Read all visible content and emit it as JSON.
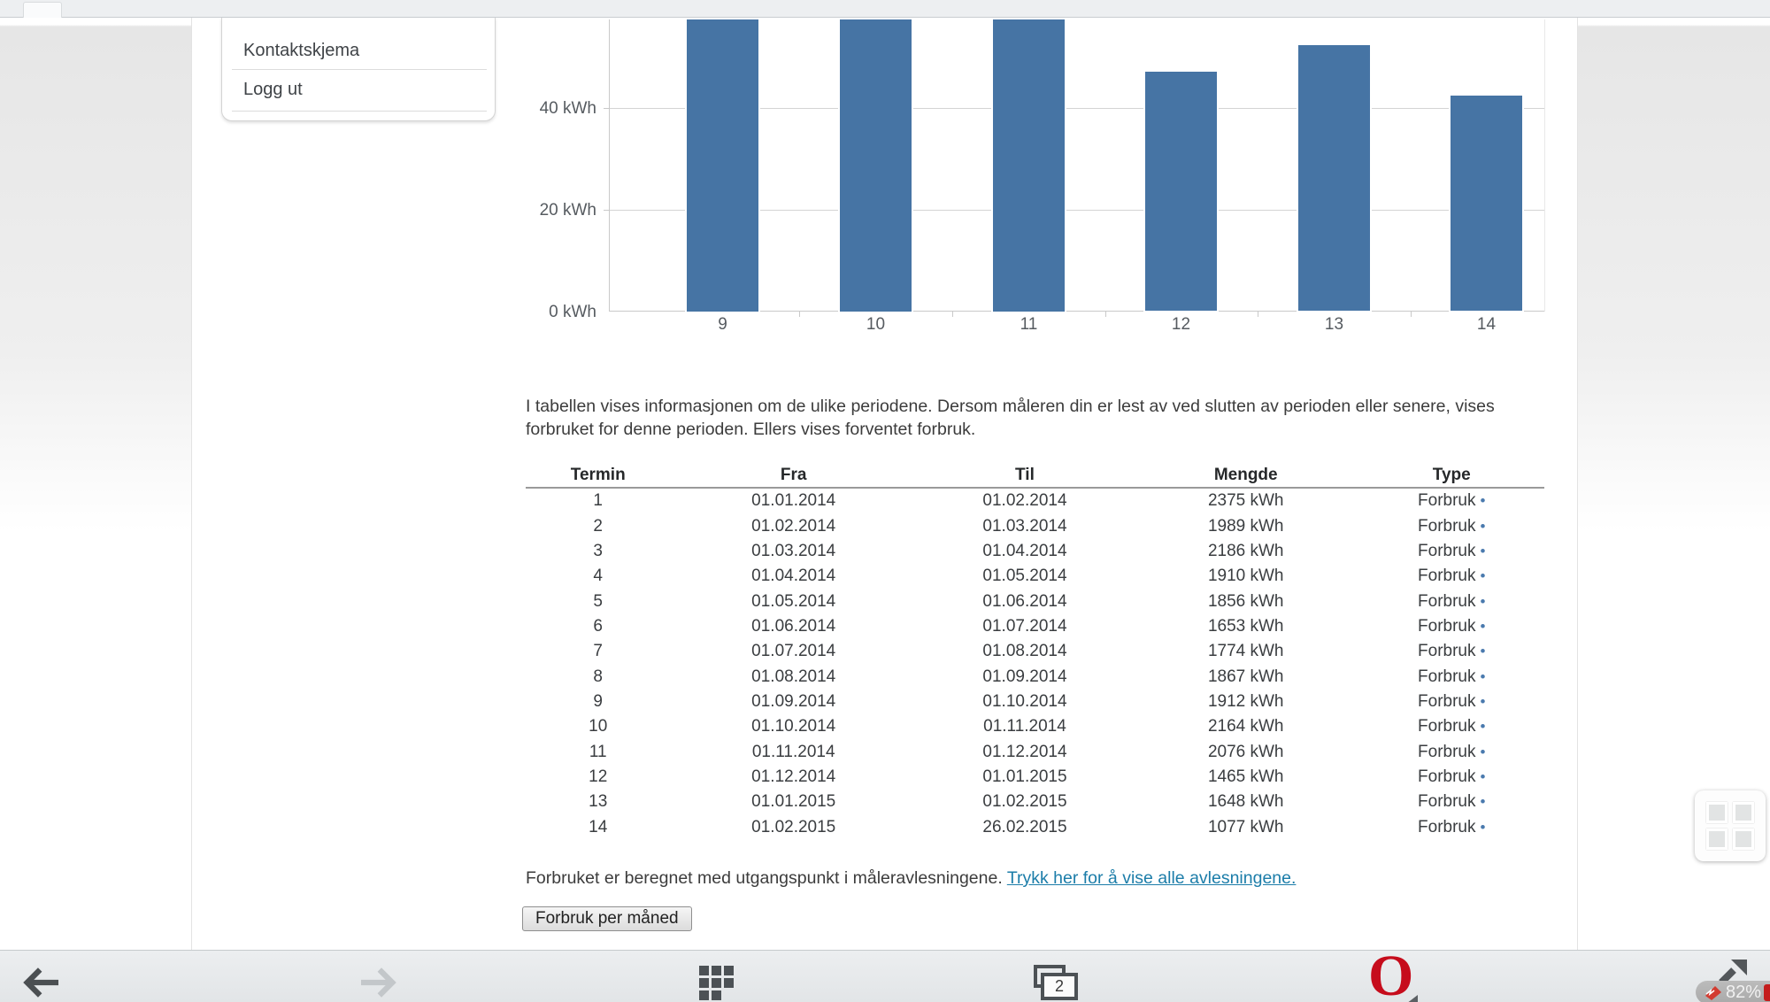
{
  "page": {
    "intro": "I tabellen vises informasjonen om de ulike periodene. Dersom måleren din er lest av ved slutten av perioden eller senere, vises forbruket for denne perioden. Ellers vises forventet forbruk.",
    "footer_text": "Forbruket er beregnet med utgangspunkt i måleravlesningene. ",
    "footer_link": "Trykk her for å vise alle avlesningene.",
    "button_label": "Forbruk per måned"
  },
  "sidebar": {
    "items": [
      "Kontaktskjema",
      "Logg ut"
    ]
  },
  "chart_data": {
    "type": "bar",
    "title": "",
    "xlabel": "",
    "ylabel": "kWh",
    "categories": [
      "9",
      "10",
      "11",
      "12",
      "13",
      "14"
    ],
    "values": [
      58.1,
      58.1,
      58.1,
      47.2,
      52.4,
      42.5
    ],
    "clipped_at_top": [
      true,
      true,
      true,
      false,
      false,
      false
    ],
    "yticks": [
      0,
      20,
      40
    ],
    "ytick_labels": [
      "0 kWh",
      "20 kWh",
      "40 kWh"
    ],
    "ylim_visible": [
      0,
      58.1
    ],
    "grid": true,
    "legend": "none",
    "bar_color": "#4674a4",
    "note": "Bars for periods 9-11 extend above the visible viewport (chart scrolled, top cut off)"
  },
  "table": {
    "headers": [
      "Termin",
      "Fra",
      "Til",
      "Mengde",
      "Type"
    ],
    "type_bullet": "•",
    "rows": [
      [
        "1",
        "01.01.2014",
        "01.02.2014",
        "2375 kWh",
        "Forbruk"
      ],
      [
        "2",
        "01.02.2014",
        "01.03.2014",
        "1989 kWh",
        "Forbruk"
      ],
      [
        "3",
        "01.03.2014",
        "01.04.2014",
        "2186 kWh",
        "Forbruk"
      ],
      [
        "4",
        "01.04.2014",
        "01.05.2014",
        "1910 kWh",
        "Forbruk"
      ],
      [
        "5",
        "01.05.2014",
        "01.06.2014",
        "1856 kWh",
        "Forbruk"
      ],
      [
        "6",
        "01.06.2014",
        "01.07.2014",
        "1653 kWh",
        "Forbruk"
      ],
      [
        "7",
        "01.07.2014",
        "01.08.2014",
        "1774 kWh",
        "Forbruk"
      ],
      [
        "8",
        "01.08.2014",
        "01.09.2014",
        "1867 kWh",
        "Forbruk"
      ],
      [
        "9",
        "01.09.2014",
        "01.10.2014",
        "1912 kWh",
        "Forbruk"
      ],
      [
        "10",
        "01.10.2014",
        "01.11.2014",
        "2164 kWh",
        "Forbruk"
      ],
      [
        "11",
        "01.11.2014",
        "01.12.2014",
        "2076 kWh",
        "Forbruk"
      ],
      [
        "12",
        "01.12.2014",
        "01.01.2015",
        "1465 kWh",
        "Forbruk"
      ],
      [
        "13",
        "01.01.2015",
        "01.02.2015",
        "1648 kWh",
        "Forbruk"
      ],
      [
        "14",
        "01.02.2015",
        "26.02.2015",
        "1077 kWh",
        "Forbruk"
      ]
    ]
  },
  "nav": {
    "tab_count": "2",
    "battery_percent": "82%"
  },
  "colors": {
    "bar_blue": "#4674a4",
    "link_teal": "#1c7da9",
    "opera_red": "#c60c1c",
    "nav_icon": "#4c5155",
    "nav_icon_disabled": "#c3c7ca",
    "forbruk_bullet": "#4a7aae"
  }
}
